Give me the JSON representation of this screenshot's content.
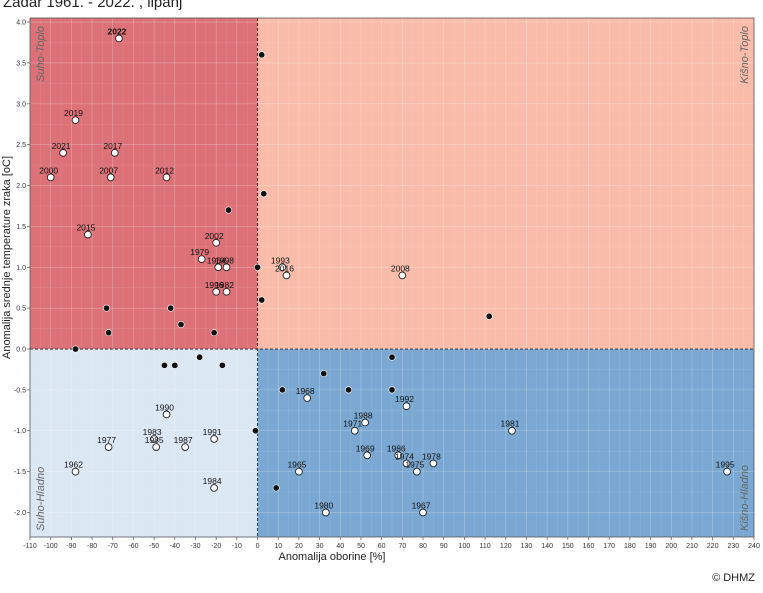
{
  "title": "Zadar 1961. - 2022. , lipanj",
  "credit": "© DHMZ",
  "chart_data": {
    "type": "scatter",
    "title": "Zadar 1961. - 2022. , lipanj",
    "xlabel": "Anomalija oborine  [%]",
    "ylabel": "Anomalija srednje temperature zraka [oC]",
    "xlim": [
      -110,
      240
    ],
    "ylim": [
      -2.3,
      4.05
    ],
    "xticks": [
      -110,
      -100,
      -90,
      -80,
      -70,
      -60,
      -50,
      -40,
      -30,
      -20,
      -10,
      0,
      10,
      20,
      30,
      40,
      50,
      60,
      70,
      80,
      90,
      100,
      110,
      120,
      130,
      140,
      150,
      160,
      170,
      180,
      190,
      200,
      210,
      220,
      230,
      240
    ],
    "yticks": [
      -2.0,
      -1.5,
      -1.0,
      -0.5,
      0.0,
      0.5,
      1.0,
      1.5,
      2.0,
      2.5,
      3.0,
      3.5,
      4.0
    ],
    "grid": true,
    "quadrants": [
      {
        "label": "Suho-Toplo",
        "color": "#dc7177",
        "position": "top-left"
      },
      {
        "label": "Kišno-Toplo",
        "color": "#f9bcaa",
        "position": "top-right"
      },
      {
        "label": "Suho-Hladno",
        "color": "#dce7f4",
        "position": "bottom-left"
      },
      {
        "label": "Kišno-Hladno",
        "color": "#7aa8d2",
        "position": "bottom-right"
      }
    ],
    "labeled_points": [
      {
        "year": "2022",
        "x": -67,
        "y": 3.8,
        "latest": true
      },
      {
        "year": "2019",
        "x": -88,
        "y": 2.8
      },
      {
        "year": "2017",
        "x": -69,
        "y": 2.4
      },
      {
        "year": "2021",
        "x": -94,
        "y": 2.4
      },
      {
        "year": "2000",
        "x": -100,
        "y": 2.1
      },
      {
        "year": "2007",
        "x": -71,
        "y": 2.1
      },
      {
        "year": "2012",
        "x": -44,
        "y": 2.1
      },
      {
        "year": "2015",
        "x": -82,
        "y": 1.4
      },
      {
        "year": "2002",
        "x": -20,
        "y": 1.3
      },
      {
        "year": "1979",
        "x": -27,
        "y": 1.1
      },
      {
        "year": "1998",
        "x": -15,
        "y": 1.0
      },
      {
        "year": "1964",
        "x": -19,
        "y": 1.0
      },
      {
        "year": "1996",
        "x": -20,
        "y": 0.7
      },
      {
        "year": "1982",
        "x": -15,
        "y": 0.7
      },
      {
        "year": "1993",
        "x": 12,
        "y": 1.0
      },
      {
        "year": "2016",
        "x": 14,
        "y": 0.9
      },
      {
        "year": "2008",
        "x": 70,
        "y": 0.9
      },
      {
        "year": "1990",
        "x": -44,
        "y": -0.8
      },
      {
        "year": "1983",
        "x": -50,
        "y": -1.1
      },
      {
        "year": "1985",
        "x": -49,
        "y": -1.2
      },
      {
        "year": "1977",
        "x": -72,
        "y": -1.2
      },
      {
        "year": "1987",
        "x": -35,
        "y": -1.2
      },
      {
        "year": "1991",
        "x": -21,
        "y": -1.1
      },
      {
        "year": "1962",
        "x": -88,
        "y": -1.5
      },
      {
        "year": "1984",
        "x": -21,
        "y": -1.7
      },
      {
        "year": "1992",
        "x": 72,
        "y": -0.7
      },
      {
        "year": "1968",
        "x": 24,
        "y": -0.6
      },
      {
        "year": "1988",
        "x": 52,
        "y": -0.9
      },
      {
        "year": "1971",
        "x": 47,
        "y": -1.0
      },
      {
        "year": "1981",
        "x": 123,
        "y": -1.0
      },
      {
        "year": "1986",
        "x": 68,
        "y": -1.3
      },
      {
        "year": "1969",
        "x": 53,
        "y": -1.3
      },
      {
        "year": "1974",
        "x": 72,
        "y": -1.4
      },
      {
        "year": "1978",
        "x": 85,
        "y": -1.4
      },
      {
        "year": "1975",
        "x": 77,
        "y": -1.5
      },
      {
        "year": "1965",
        "x": 20,
        "y": -1.5
      },
      {
        "year": "1995",
        "x": 227,
        "y": -1.5
      },
      {
        "year": "1980",
        "x": 33,
        "y": -2.0
      },
      {
        "year": "1967",
        "x": 80,
        "y": -2.0
      }
    ],
    "unlabeled_points": [
      {
        "x": 2,
        "y": 3.6
      },
      {
        "x": 3,
        "y": 1.9
      },
      {
        "x": -14,
        "y": 1.7
      },
      {
        "x": 0,
        "y": 1.0
      },
      {
        "x": 2,
        "y": 0.6
      },
      {
        "x": -73,
        "y": 0.5
      },
      {
        "x": -42,
        "y": 0.5
      },
      {
        "x": 112,
        "y": 0.4
      },
      {
        "x": -37,
        "y": 0.3
      },
      {
        "x": -72,
        "y": 0.2
      },
      {
        "x": -21,
        "y": 0.2
      },
      {
        "x": -88,
        "y": 0.0
      },
      {
        "x": -28,
        "y": -0.1
      },
      {
        "x": 65,
        "y": -0.1
      },
      {
        "x": -45,
        "y": -0.2
      },
      {
        "x": -40,
        "y": -0.2
      },
      {
        "x": -17,
        "y": -0.2
      },
      {
        "x": 32,
        "y": -0.3
      },
      {
        "x": 12,
        "y": -0.5
      },
      {
        "x": 44,
        "y": -0.5
      },
      {
        "x": 65,
        "y": -0.5
      },
      {
        "x": -1,
        "y": -1.0
      },
      {
        "x": 9,
        "y": -1.7
      }
    ]
  }
}
